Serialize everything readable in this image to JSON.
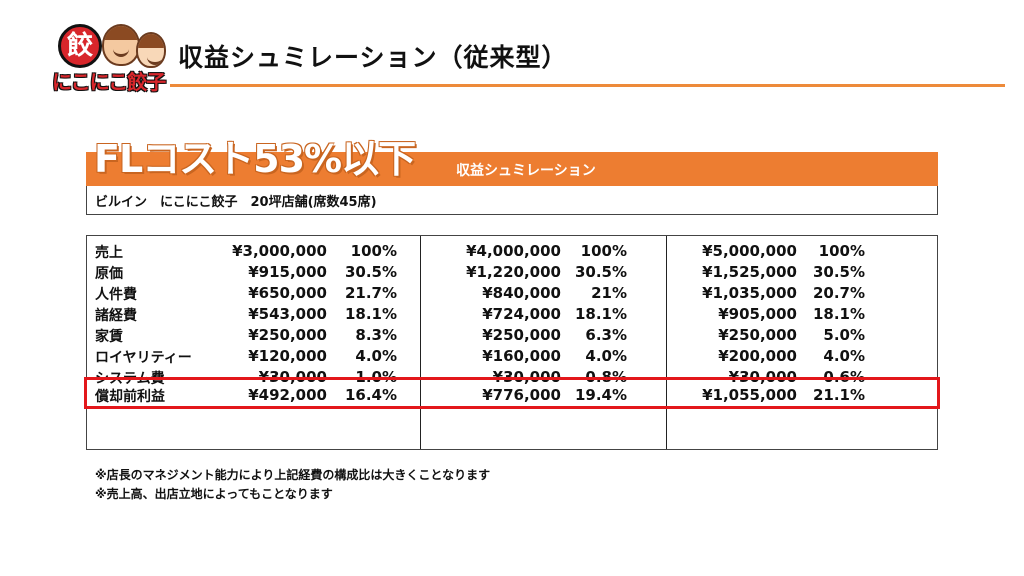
{
  "header": {
    "logo_text": "にこにこ餃子",
    "logo_seal": "餃",
    "title": "収益シュミレーション（従来型）"
  },
  "banner": {
    "heading": "FLコスト53%以下",
    "subtitle": "収益シュミレーション",
    "store": "ビルイン　にこにこ餃子　20坪店舗(席数45席)"
  },
  "table": {
    "rows": [
      {
        "label": "売上",
        "a1": "¥3,000,000",
        "p1": "100%",
        "a2": "¥4,000,000",
        "p2": "100%",
        "a3": "¥5,000,000",
        "p3": "100%"
      },
      {
        "label": "原価",
        "a1": "¥915,000",
        "p1": "30.5%",
        "a2": "¥1,220,000",
        "p2": "30.5%",
        "a3": "¥1,525,000",
        "p3": "30.5%"
      },
      {
        "label": "人件費",
        "a1": "¥650,000",
        "p1": "21.7%",
        "a2": "¥840,000",
        "p2": "21%",
        "a3": "¥1,035,000",
        "p3": "20.7%"
      },
      {
        "label": "諸経費",
        "a1": "¥543,000",
        "p1": "18.1%",
        "a2": "¥724,000",
        "p2": "18.1%",
        "a3": "¥905,000",
        "p3": "18.1%"
      },
      {
        "label": "家賃",
        "a1": "¥250,000",
        "p1": "8.3%",
        "a2": "¥250,000",
        "p2": "6.3%",
        "a3": "¥250,000",
        "p3": "5.0%"
      },
      {
        "label": "ロイヤリティー",
        "a1": "¥120,000",
        "p1": "4.0%",
        "a2": "¥160,000",
        "p2": "4.0%",
        "a3": "¥200,000",
        "p3": "4.0%"
      },
      {
        "label": "システム費",
        "a1": "¥30,000",
        "p1": "1.0%",
        "a2": "¥30,000",
        "p2": "0.8%",
        "a3": "¥30,000",
        "p3": "0.6%"
      },
      {
        "label": "償却前利益",
        "a1": "¥492,000",
        "p1": "16.4%",
        "a2": "¥776,000",
        "p2": "19.4%",
        "a3": "¥1,055,000",
        "p3": "21.1%"
      }
    ]
  },
  "notes": [
    "※店長のマネジメント能力により上記経費の構成比は大きくことなります",
    "※売上高、出店立地によってもことなります"
  ],
  "colors": {
    "accent_orange": "#ed7d31",
    "highlight_red": "#e3171b"
  }
}
